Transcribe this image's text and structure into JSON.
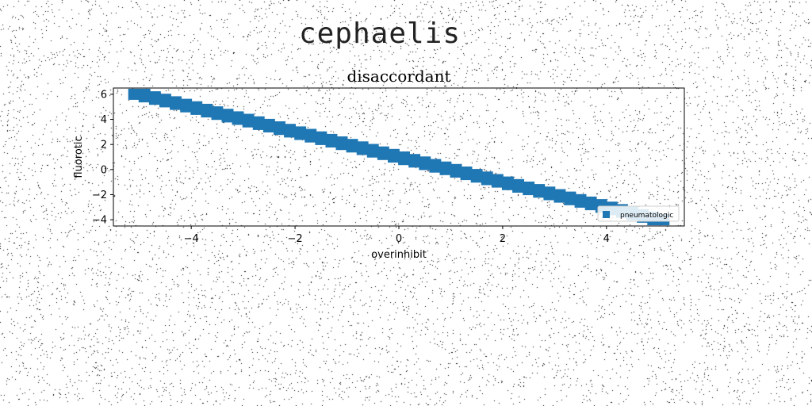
{
  "page": {
    "title": "cephaelis"
  },
  "chart_data": {
    "type": "scatter",
    "title": "disaccordant",
    "xlabel": "overinhibit",
    "ylabel": "fluorotic",
    "xlim": [
      -5.5,
      5.5
    ],
    "ylim": [
      -4.5,
      6.5
    ],
    "x_ticks": [
      "−4",
      "−2",
      "0",
      "2",
      "4"
    ],
    "y_ticks": [
      "−4",
      "−2",
      "0",
      "2",
      "4",
      "6"
    ],
    "grid": false,
    "legend": {
      "position": "lower-right"
    },
    "marker": "square",
    "colors": {
      "series": "#1f77b4"
    },
    "series": [
      {
        "name": "pneumatologic",
        "x": [
          -5.0,
          -4.8,
          -4.6,
          -4.4,
          -4.2,
          -4.0,
          -3.8,
          -3.6,
          -3.4,
          -3.2,
          -3.0,
          -2.8,
          -2.6,
          -2.4,
          -2.2,
          -2.0,
          -1.8,
          -1.6,
          -1.4,
          -1.2,
          -1.0,
          -0.8,
          -0.6,
          -0.4,
          -0.2,
          0.0,
          0.2,
          0.4,
          0.6,
          0.8,
          1.0,
          1.2,
          1.4,
          1.6,
          1.8,
          2.0,
          2.2,
          2.4,
          2.6,
          2.8,
          3.0,
          3.2,
          3.4,
          3.6,
          3.8,
          4.0,
          4.2,
          4.4,
          4.6,
          4.8,
          5.0
        ],
        "y": [
          6.0,
          5.8,
          5.6,
          5.4,
          5.2,
          5.0,
          4.8,
          4.6,
          4.4,
          4.2,
          4.0,
          3.8,
          3.6,
          3.4,
          3.2,
          3.0,
          2.8,
          2.6,
          2.4,
          2.2,
          2.0,
          1.8,
          1.6,
          1.4,
          1.2,
          1.0,
          0.8,
          0.6,
          0.4,
          0.2,
          0.0,
          -0.2,
          -0.4,
          -0.6,
          -0.8,
          -1.0,
          -1.2,
          -1.4,
          -1.6,
          -1.8,
          -2.0,
          -2.2,
          -2.4,
          -2.6,
          -2.8,
          -3.0,
          -3.2,
          -3.4,
          -3.6,
          -3.8,
          -4.0
        ]
      }
    ]
  }
}
